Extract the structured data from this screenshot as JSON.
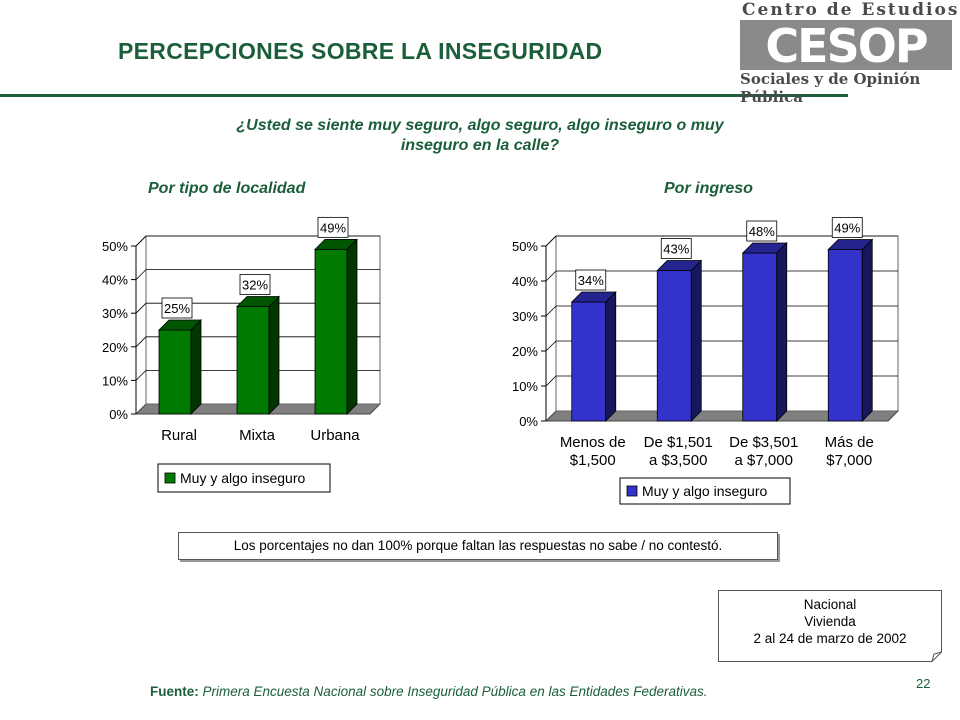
{
  "title": "PERCEPCIONES SOBRE LA INSEGURIDAD",
  "logo": {
    "line1": "Centro de Estudios",
    "mark": "CESOP",
    "line2": "Sociales y de Opinión Pública"
  },
  "question": {
    "line1": "¿Usted se siente muy seguro, algo seguro, algo inseguro o muy",
    "line2": "inseguro en la calle?"
  },
  "colors": {
    "title": "#1a5e3a",
    "green_bar": "#007a00",
    "blue_bar": "#3333cc"
  },
  "chart_data": [
    {
      "type": "bar",
      "title": "Por tipo de localidad",
      "categories": [
        [
          "Rural"
        ],
        [
          "Mixta"
        ],
        [
          "Urbana"
        ]
      ],
      "series": [
        {
          "name": "Muy y algo inseguro",
          "values": [
            25,
            32,
            49
          ]
        }
      ],
      "data_labels": [
        "25%",
        "32%",
        "49%"
      ],
      "yticks": [
        "0%",
        "10%",
        "20%",
        "30%",
        "40%",
        "50%"
      ],
      "ylim": [
        0,
        50
      ],
      "grid": true,
      "legend": "bottom"
    },
    {
      "type": "bar",
      "title": "Por ingreso",
      "categories": [
        [
          "Menos de",
          "$1,500"
        ],
        [
          "De $1,501",
          "a $3,500"
        ],
        [
          "De $3,501",
          "a $7,000"
        ],
        [
          "Más de",
          "$7,000"
        ]
      ],
      "series": [
        {
          "name": "Muy y algo inseguro",
          "values": [
            34,
            43,
            48,
            49
          ]
        }
      ],
      "data_labels": [
        "34%",
        "43%",
        "48%",
        "49%"
      ],
      "yticks": [
        "0%",
        "10%",
        "20%",
        "30%",
        "40%",
        "50%"
      ],
      "ylim": [
        0,
        50
      ],
      "grid": true,
      "legend": "bottom"
    }
  ],
  "note": "Los porcentajes no dan 100% porque faltan las respuestas no sabe / no contestó.",
  "source_box": {
    "line1": "Nacional",
    "line2": "Vivienda",
    "line3": "2 al 24 de marzo de 2002"
  },
  "fuente": {
    "label": "Fuente:",
    "text": "Primera Encuesta Nacional sobre Inseguridad Pública en las Entidades Federativas."
  },
  "page_number": "22"
}
